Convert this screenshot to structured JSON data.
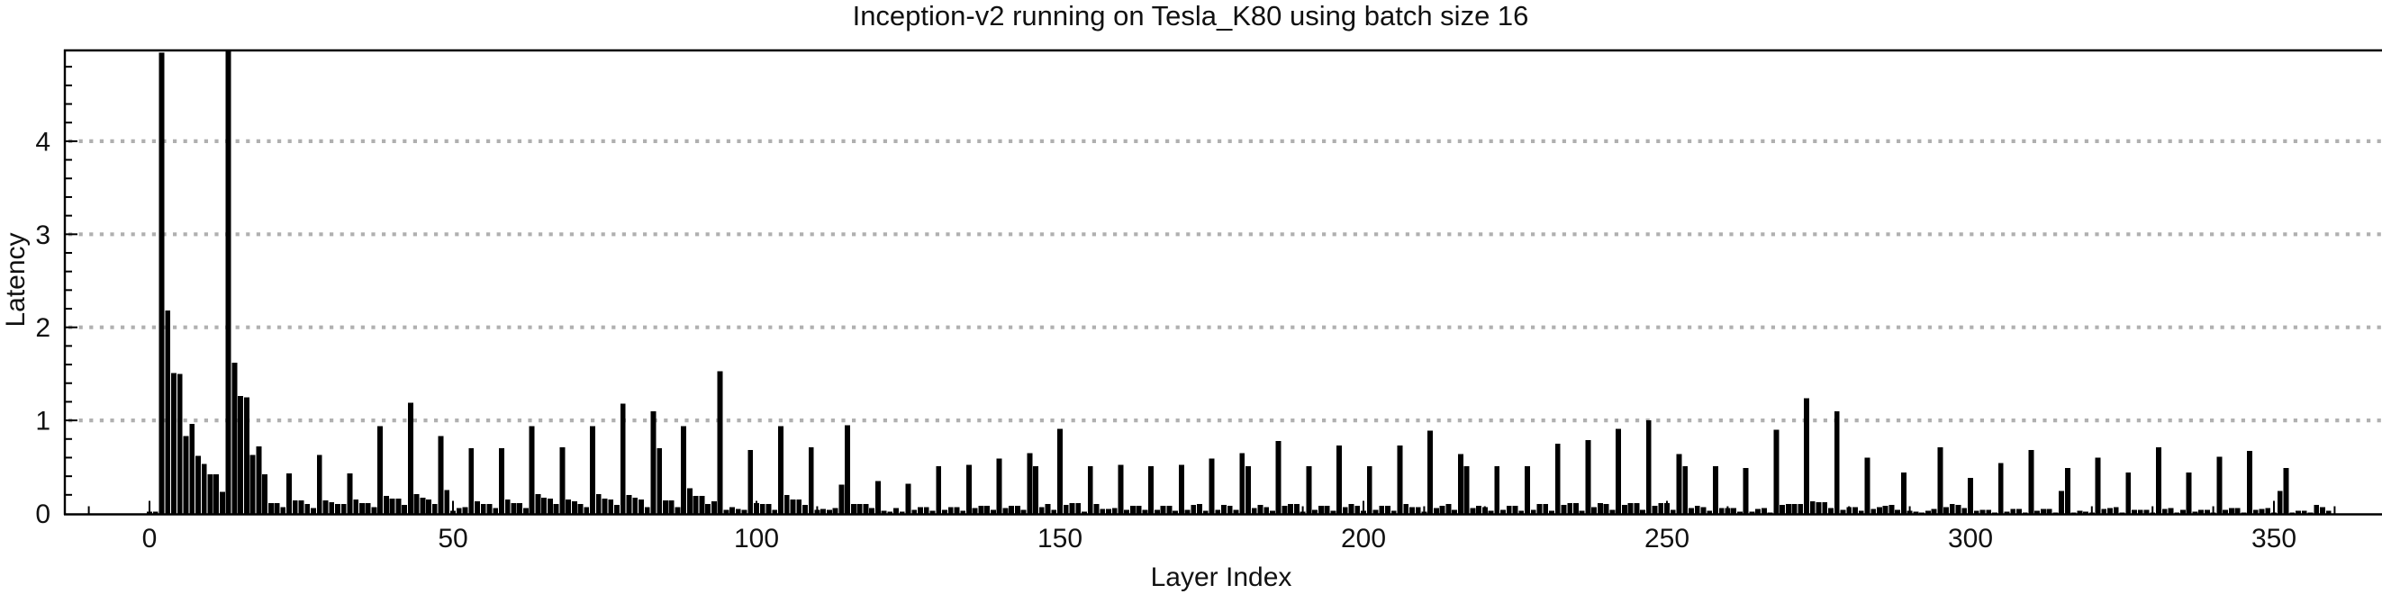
{
  "page": {
    "background": "#ffffff"
  },
  "chart_data": {
    "type": "bar",
    "title": "Inception-v2 running on Tesla_K80 using batch size 16",
    "xlabel": "Layer Index",
    "ylabel": "Latency",
    "legend": "none",
    "grid": "horizontal dotted lines at y = 1, 2, 3, 4",
    "bar_color": "#000000",
    "grid_color": "#b0b0b0",
    "axis_color": "#000000",
    "text_color": "#111111",
    "xlim": [
      -14,
      368
    ],
    "ylim": [
      0,
      5
    ],
    "x_tick_labels": [
      0,
      50,
      100,
      150,
      200,
      250,
      300,
      350
    ],
    "x_minor_tick_step": 10,
    "y_tick_labels": [
      0,
      1,
      2,
      3,
      4
    ],
    "y_minor_tick_step": 0.2,
    "at_axis_top_layers": [
      2,
      13
    ],
    "series": [
      {
        "name": "Latency",
        "x_start": 0,
        "values": [
          0.02,
          0.02,
          4.95,
          2.18,
          1.51,
          1.5,
          0.83,
          0.96,
          0.62,
          0.53,
          0.42,
          0.42,
          0.23,
          4.97,
          1.62,
          1.26,
          1.25,
          0.63,
          0.72,
          0.42,
          0.11,
          0.11,
          0.07,
          0.43,
          0.14,
          0.14,
          0.1,
          0.06,
          0.63,
          0.14,
          0.12,
          0.1,
          0.1,
          0.43,
          0.15,
          0.11,
          0.11,
          0.07,
          0.94,
          0.19,
          0.16,
          0.16,
          0.09,
          1.19,
          0.21,
          0.17,
          0.15,
          0.1,
          0.83,
          0.25,
          0.03,
          0.06,
          0.07,
          0.7,
          0.13,
          0.1,
          0.1,
          0.06,
          0.7,
          0.15,
          0.11,
          0.11,
          0.06,
          0.94,
          0.21,
          0.17,
          0.16,
          0.1,
          0.71,
          0.15,
          0.13,
          0.1,
          0.07,
          0.94,
          0.21,
          0.16,
          0.15,
          0.09,
          1.18,
          0.2,
          0.17,
          0.15,
          0.07,
          1.1,
          0.7,
          0.14,
          0.14,
          0.07,
          0.94,
          0.27,
          0.19,
          0.19,
          0.1,
          0.13,
          1.53,
          0.04,
          0.07,
          0.05,
          0.04,
          0.68,
          0.11,
          0.1,
          0.1,
          0.04,
          0.94,
          0.2,
          0.15,
          0.15,
          0.09,
          0.71,
          0.04,
          0.05,
          0.04,
          0.06,
          0.31,
          0.95,
          0.1,
          0.1,
          0.1,
          0.06,
          0.35,
          0.03,
          0.02,
          0.06,
          0.02,
          0.32,
          0.04,
          0.07,
          0.07,
          0.03,
          0.51,
          0.04,
          0.07,
          0.07,
          0.03,
          0.52,
          0.06,
          0.08,
          0.08,
          0.04,
          0.59,
          0.06,
          0.08,
          0.08,
          0.04,
          0.65,
          0.51,
          0.07,
          0.1,
          0.04,
          0.91,
          0.09,
          0.11,
          0.11,
          0.02,
          0.51,
          0.1,
          0.05,
          0.05,
          0.06,
          0.52,
          0.04,
          0.08,
          0.08,
          0.04,
          0.51,
          0.04,
          0.08,
          0.08,
          0.03,
          0.52,
          0.04,
          0.09,
          0.1,
          0.03,
          0.59,
          0.04,
          0.09,
          0.08,
          0.04,
          0.65,
          0.51,
          0.06,
          0.09,
          0.07,
          0.03,
          0.78,
          0.08,
          0.1,
          0.1,
          0.02,
          0.51,
          0.04,
          0.08,
          0.08,
          0.03,
          0.73,
          0.07,
          0.1,
          0.08,
          0.03,
          0.51,
          0.04,
          0.08,
          0.08,
          0.03,
          0.73,
          0.1,
          0.07,
          0.07,
          0.02,
          0.89,
          0.06,
          0.08,
          0.1,
          0.04,
          0.64,
          0.51,
          0.06,
          0.08,
          0.07,
          0.03,
          0.51,
          0.04,
          0.08,
          0.08,
          0.03,
          0.51,
          0.04,
          0.1,
          0.1,
          0.03,
          0.75,
          0.09,
          0.11,
          0.11,
          0.03,
          0.79,
          0.07,
          0.11,
          0.1,
          0.04,
          0.91,
          0.09,
          0.11,
          0.11,
          0.04,
          1.0,
          0.08,
          0.11,
          0.11,
          0.04,
          0.64,
          0.51,
          0.06,
          0.08,
          0.07,
          0.03,
          0.51,
          0.06,
          0.06,
          0.06,
          0.02,
          0.49,
          0.02,
          0.05,
          0.06,
          0.01,
          0.9,
          0.09,
          0.1,
          0.1,
          0.1,
          1.24,
          0.13,
          0.12,
          0.12,
          0.06,
          1.1,
          0.04,
          0.07,
          0.07,
          0.03,
          0.6,
          0.05,
          0.07,
          0.08,
          0.09,
          0.04,
          0.44,
          0.03,
          0.02,
          0.01,
          0.03,
          0.05,
          0.71,
          0.07,
          0.1,
          0.09,
          0.06,
          0.38,
          0.03,
          0.04,
          0.04,
          0.01,
          0.54,
          0.02,
          0.05,
          0.05,
          0.01,
          0.68,
          0.03,
          0.05,
          0.05,
          0.01,
          0.24,
          0.49,
          0.01,
          0.03,
          0.02,
          0.01,
          0.6,
          0.05,
          0.06,
          0.07,
          0.01,
          0.44,
          0.04,
          0.04,
          0.04,
          0.01,
          0.71,
          0.05,
          0.06,
          0.01,
          0.04,
          0.44,
          0.02,
          0.04,
          0.04,
          0.01,
          0.61,
          0.04,
          0.06,
          0.06,
          0.01,
          0.67,
          0.04,
          0.05,
          0.06,
          0.01,
          0.24,
          0.49,
          0.01,
          0.03,
          0.03,
          0.01,
          0.09,
          0.07,
          0.03
        ]
      }
    ]
  }
}
